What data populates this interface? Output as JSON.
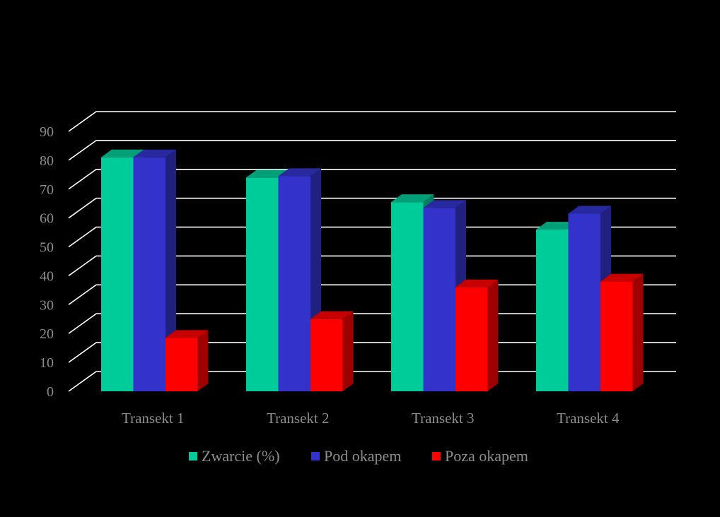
{
  "chart_data": {
    "type": "bar",
    "style": "3d-clustered-column",
    "categories": [
      "Transekt 1",
      "Transekt 2",
      "Transekt 3",
      "Transekt 4"
    ],
    "series": [
      {
        "name": "Zwarcie (%)",
        "color": "#00CC99",
        "values": [
          81,
          74,
          65.5,
          56
        ]
      },
      {
        "name": "Pod okapem",
        "color": "#3333CC",
        "values": [
          81,
          74.5,
          63.5,
          61.5
        ]
      },
      {
        "name": "Poza okapem",
        "color": "#FF0000",
        "values": [
          18.5,
          25,
          36,
          38
        ]
      }
    ],
    "ylim": [
      0,
      90
    ],
    "y_ticks": [
      "0",
      "10",
      "20",
      "30",
      "40",
      "50",
      "60",
      "70",
      "80",
      "90"
    ],
    "grid": true,
    "legend_position": "bottom",
    "title": "",
    "xlabel": "",
    "ylabel": ""
  },
  "colors": {
    "background": "#000000",
    "gridline": "#FFFFFF",
    "text": "#8C8C8C"
  }
}
